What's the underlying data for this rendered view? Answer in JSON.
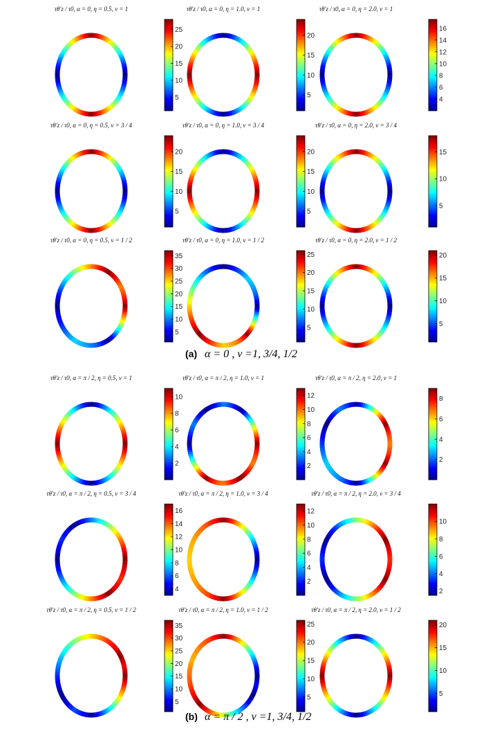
{
  "chart_data": {
    "type": "heatmap",
    "colormap": "jet",
    "sections": [
      {
        "letter": "(a)",
        "caption": "α = 0 , ν =1, 3/4, 1/2",
        "rows": [
          {
            "panels": [
              {
                "title": "τθ'z / τ0, α = 0, η = 0.5, ν = 1",
                "cbar_ticks": [
                  5,
                  10,
                  15,
                  20,
                  25
                ],
                "clim": [
                  1,
                  28
                ],
                "cold_angles": [
                  0,
                  180
                ],
                "warm_angles": [
                  90,
                  270
                ]
              },
              {
                "title": "τθ'z / τ0, α = 0, η = 1.0, ν = 1",
                "cbar_ticks": [
                  5,
                  10,
                  15,
                  20
                ],
                "clim": [
                  1,
                  24
                ],
                "cold_angles": [
                  90,
                  270
                ],
                "warm_angles": [
                  0,
                  180
                ]
              },
              {
                "title": "τθ'z / τ0, α = 0, η = 2.0, ν = 1",
                "cbar_ticks": [
                  4,
                  6,
                  8,
                  10,
                  12,
                  14,
                  16
                ],
                "clim": [
                  2,
                  17.5
                ],
                "cold_angles": [
                  0,
                  180
                ],
                "warm_angles": [
                  90,
                  270
                ]
              }
            ]
          },
          {
            "panels": [
              {
                "title": "τθ'z / τ0, α = 0, η = 0.5, ν = 3 / 4",
                "cbar_ticks": [
                  5,
                  10,
                  15,
                  20
                ],
                "clim": [
                  1,
                  24
                ],
                "cold_angles": [
                  0,
                  180
                ],
                "warm_angles": [
                  90,
                  270
                ]
              },
              {
                "title": "τθ'z / τ0, α = 0, η = 1.0, ν = 3 / 4",
                "cbar_ticks": [
                  5,
                  10,
                  15,
                  20
                ],
                "clim": [
                  1,
                  24
                ],
                "cold_angles": [
                  90,
                  270
                ],
                "warm_angles": [
                  0,
                  180
                ]
              },
              {
                "title": "τθ'z / τ0, α = 0, η = 2.0, ν = 3 / 4",
                "cbar_ticks": [
                  5,
                  10,
                  15
                ],
                "clim": [
                  1,
                  18
                ],
                "cold_angles": [
                  0,
                  180
                ],
                "warm_angles": [
                  90,
                  270
                ]
              }
            ]
          },
          {
            "panels": [
              {
                "title": "τθ'z / τ0, α = 0, η = 0.5, ν = 1 / 2",
                "cbar_ticks": [
                  5,
                  10,
                  15,
                  20,
                  25,
                  30,
                  35
                ],
                "clim": [
                  1,
                  37
                ],
                "cold_angles": [
                  180,
                  300
                ],
                "warm_angles": [
                  60,
                  0
                ]
              },
              {
                "title": "τθ'z / τ0, α = 0, η = 1.0, ν = 1 / 2",
                "cbar_ticks": [
                  5,
                  10,
                  15,
                  20,
                  25
                ],
                "clim": [
                  1,
                  26
                ],
                "cold_angles": [
                  90,
                  0
                ],
                "warm_angles": [
                  225,
                  315
                ]
              },
              {
                "title": "τθ'z / τ0, α = 0, η = 2.0, ν = 1 / 2",
                "cbar_ticks": [
                  5,
                  10,
                  15,
                  20
                ],
                "clim": [
                  1,
                  21
                ],
                "cold_angles": [
                  0,
                  180
                ],
                "warm_angles": [
                  90,
                  270
                ]
              }
            ]
          }
        ]
      },
      {
        "letter": "(b)",
        "caption": "α = π / 2 , ν =1, 3/4, 1/2",
        "rows": [
          {
            "panels": [
              {
                "title": "τθ'z / τ0, α = π / 2, η = 0.5, ν = 1",
                "cbar_ticks": [
                  2,
                  4,
                  6,
                  8,
                  10
                ],
                "clim": [
                  0,
                  11
                ],
                "cold_angles": [
                  90,
                  270
                ],
                "warm_angles": [
                  0,
                  180
                ]
              },
              {
                "title": "τθ'z / τ0, α = π / 2, η = 1.0, ν = 1",
                "cbar_ticks": [
                  2,
                  4,
                  6,
                  8,
                  10,
                  12
                ],
                "clim": [
                  0,
                  13
                ],
                "cold_angles": [
                  60,
                  120,
                  180
                ],
                "warm_angles": [
                  0,
                  300,
                  240
                ]
              },
              {
                "title": "τθ'z / τ0, α = π / 2, η = 2.0, ν = 1",
                "cbar_ticks": [
                  2,
                  4,
                  6,
                  8
                ],
                "clim": [
                  0,
                  9
                ],
                "cold_angles": [
                  90,
                  270,
                  150
                ],
                "warm_angles": [
                  330,
                  30
                ]
              }
            ]
          },
          {
            "panels": [
              {
                "title": "τθ'z / τ0, α = π / 2, η = 0.5, ν = 3 / 4",
                "cbar_ticks": [
                  4,
                  6,
                  8,
                  10,
                  12,
                  14,
                  16
                ],
                "clim": [
                  3,
                  17
                ],
                "cold_angles": [
                  120,
                  180
                ],
                "warm_angles": [
                  300,
                  0
                ]
              },
              {
                "title": "τθ'z / τ0, α = π / 2, η = 1.0, ν = 3 / 4",
                "cbar_ticks": [
                  2,
                  4,
                  6,
                  8,
                  10,
                  12
                ],
                "clim": [
                  0,
                  13
                ],
                "cold_angles": [
                  0
                ],
                "warm_angles": [
                  90,
                  270
                ]
              },
              {
                "title": "τθ'z / τ0, α = π / 2, η = 2.0, ν = 3 / 4",
                "cbar_ticks": [
                  2,
                  4,
                  6,
                  8,
                  10
                ],
                "clim": [
                  1.5,
                  12
                ],
                "cold_angles": [
                  150,
                  210
                ],
                "warm_angles": [
                  330,
                  30
                ]
              }
            ]
          },
          {
            "panels": [
              {
                "title": "τθ'z / τ0, α = π / 2, η = 0.5, ν = 1 / 2",
                "cbar_ticks": [
                  5,
                  10,
                  15,
                  20,
                  25,
                  30,
                  35
                ],
                "clim": [
                  1,
                  37
                ],
                "cold_angles": [
                  270,
                  210
                ],
                "warm_angles": [
                  0,
                  30
                ]
              },
              {
                "title": "τθ'z / τ0, α = π / 2, η = 1.0, ν = 1 / 2",
                "cbar_ticks": [
                  5,
                  10,
                  15,
                  20,
                  25
                ],
                "clim": [
                  1,
                  26
                ],
                "cold_angles": [
                  0,
                  330
                ],
                "warm_angles": [
                  225,
                  90
                ]
              },
              {
                "title": "τθ'z / τ0, α = π / 2, η = 2.0, ν = 1 / 2",
                "cbar_ticks": [
                  5,
                  10,
                  15,
                  20
                ],
                "clim": [
                  1,
                  21
                ],
                "cold_angles": [
                  90,
                  270
                ],
                "warm_angles": [
                  180,
                  0
                ]
              }
            ]
          }
        ]
      }
    ]
  }
}
